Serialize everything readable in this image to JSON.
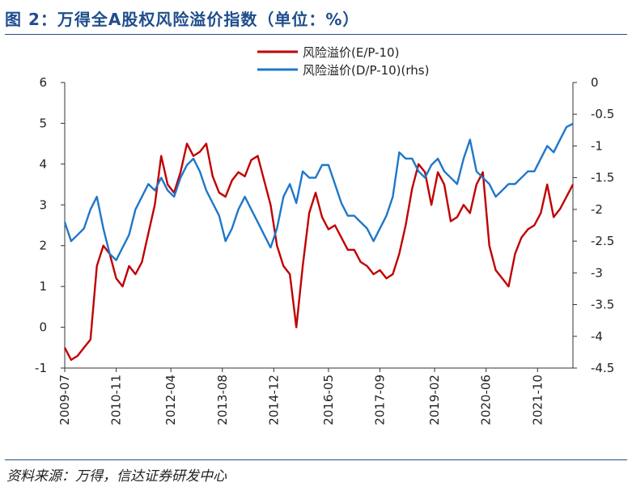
{
  "figure": {
    "title": "图 2：万得全A股权风险溢价指数（单位：%）",
    "source": "资料来源：万得，信达证券研发中心"
  },
  "chart_data": {
    "type": "line",
    "x_axis": {
      "type": "date",
      "range": [
        "2009-07",
        "2022-09"
      ],
      "tick_labels": [
        "2009-07",
        "2010-11",
        "2012-04",
        "2013-08",
        "2014-12",
        "2016-05",
        "2017-09",
        "2019-02",
        "2020-06",
        "2021-10"
      ]
    },
    "y_left": {
      "range": [
        -1,
        6
      ],
      "ticks": [
        -1,
        0,
        1,
        2,
        3,
        4,
        5,
        6
      ]
    },
    "y_right": {
      "range": [
        -4.5,
        0
      ],
      "ticks": [
        -4.5,
        -4,
        -3.5,
        -3,
        -2.5,
        -2,
        -1.5,
        -1,
        -0.5,
        0
      ]
    },
    "grid": false,
    "legend_position": "top-right",
    "series": [
      {
        "name": "风险溢价(E/P-10)",
        "axis": "left",
        "color": "#c00000",
        "x": [
          "2009-07",
          "2009-09",
          "2009-11",
          "2010-01",
          "2010-03",
          "2010-05",
          "2010-07",
          "2010-09",
          "2010-11",
          "2011-01",
          "2011-03",
          "2011-05",
          "2011-07",
          "2011-09",
          "2011-11",
          "2012-01",
          "2012-03",
          "2012-05",
          "2012-07",
          "2012-09",
          "2012-11",
          "2013-01",
          "2013-03",
          "2013-05",
          "2013-07",
          "2013-09",
          "2013-11",
          "2014-01",
          "2014-03",
          "2014-05",
          "2014-07",
          "2014-09",
          "2014-11",
          "2015-01",
          "2015-03",
          "2015-05",
          "2015-07",
          "2015-09",
          "2015-11",
          "2016-01",
          "2016-03",
          "2016-05",
          "2016-07",
          "2016-09",
          "2016-11",
          "2017-01",
          "2017-03",
          "2017-05",
          "2017-07",
          "2017-09",
          "2017-11",
          "2018-01",
          "2018-03",
          "2018-05",
          "2018-07",
          "2018-09",
          "2018-11",
          "2019-01",
          "2019-03",
          "2019-05",
          "2019-07",
          "2019-09",
          "2019-11",
          "2020-01",
          "2020-03",
          "2020-05",
          "2020-07",
          "2020-09",
          "2020-11",
          "2021-01",
          "2021-03",
          "2021-05",
          "2021-07",
          "2021-09",
          "2021-11",
          "2022-01",
          "2022-03",
          "2022-05",
          "2022-07",
          "2022-09"
        ],
        "values": [
          -0.5,
          -0.8,
          -0.7,
          -0.5,
          -0.3,
          1.5,
          2.0,
          1.8,
          1.2,
          1.0,
          1.5,
          1.3,
          1.6,
          2.3,
          3.0,
          4.2,
          3.5,
          3.3,
          3.8,
          4.5,
          4.2,
          4.3,
          4.5,
          3.7,
          3.3,
          3.2,
          3.6,
          3.8,
          3.7,
          4.1,
          4.2,
          3.6,
          3.0,
          2.0,
          1.5,
          1.3,
          0.0,
          1.5,
          2.8,
          3.3,
          2.7,
          2.4,
          2.5,
          2.2,
          1.9,
          1.9,
          1.6,
          1.5,
          1.3,
          1.4,
          1.2,
          1.3,
          1.8,
          2.5,
          3.4,
          4.0,
          3.8,
          3.0,
          3.8,
          3.5,
          2.6,
          2.7,
          3.0,
          2.8,
          3.5,
          3.8,
          2.0,
          1.4,
          1.2,
          1.0,
          1.8,
          2.2,
          2.4,
          2.5,
          2.8,
          3.5,
          2.7,
          2.9,
          3.2,
          3.5
        ]
      },
      {
        "name": "风险溢价(D/P-10)(rhs)",
        "axis": "right",
        "color": "#1f77c9",
        "x": [
          "2009-07",
          "2009-09",
          "2009-11",
          "2010-01",
          "2010-03",
          "2010-05",
          "2010-07",
          "2010-09",
          "2010-11",
          "2011-01",
          "2011-03",
          "2011-05",
          "2011-07",
          "2011-09",
          "2011-11",
          "2012-01",
          "2012-03",
          "2012-05",
          "2012-07",
          "2012-09",
          "2012-11",
          "2013-01",
          "2013-03",
          "2013-05",
          "2013-07",
          "2013-09",
          "2013-11",
          "2014-01",
          "2014-03",
          "2014-05",
          "2014-07",
          "2014-09",
          "2014-11",
          "2015-01",
          "2015-03",
          "2015-05",
          "2015-07",
          "2015-09",
          "2015-11",
          "2016-01",
          "2016-03",
          "2016-05",
          "2016-07",
          "2016-09",
          "2016-11",
          "2017-01",
          "2017-03",
          "2017-05",
          "2017-07",
          "2017-09",
          "2017-11",
          "2018-01",
          "2018-03",
          "2018-05",
          "2018-07",
          "2018-09",
          "2018-11",
          "2019-01",
          "2019-03",
          "2019-05",
          "2019-07",
          "2019-09",
          "2019-11",
          "2020-01",
          "2020-03",
          "2020-05",
          "2020-07",
          "2020-09",
          "2020-11",
          "2021-01",
          "2021-03",
          "2021-05",
          "2021-07",
          "2021-09",
          "2021-11",
          "2022-01",
          "2022-03",
          "2022-05",
          "2022-07",
          "2022-09"
        ],
        "values": [
          -2.2,
          -2.5,
          -2.4,
          -2.3,
          -2.0,
          -1.8,
          -2.3,
          -2.7,
          -2.8,
          -2.6,
          -2.4,
          -2.0,
          -1.8,
          -1.6,
          -1.7,
          -1.5,
          -1.7,
          -1.8,
          -1.5,
          -1.3,
          -1.2,
          -1.4,
          -1.7,
          -1.9,
          -2.1,
          -2.5,
          -2.3,
          -2.0,
          -1.8,
          -2.0,
          -2.2,
          -2.4,
          -2.6,
          -2.3,
          -1.8,
          -1.6,
          -1.9,
          -1.4,
          -1.5,
          -1.5,
          -1.3,
          -1.3,
          -1.6,
          -1.9,
          -2.1,
          -2.1,
          -2.2,
          -2.3,
          -2.5,
          -2.3,
          -2.1,
          -1.8,
          -1.1,
          -1.2,
          -1.2,
          -1.4,
          -1.5,
          -1.3,
          -1.2,
          -1.4,
          -1.5,
          -1.6,
          -1.2,
          -0.9,
          -1.4,
          -1.5,
          -1.6,
          -1.8,
          -1.7,
          -1.6,
          -1.6,
          -1.5,
          -1.4,
          -1.4,
          -1.2,
          -1.0,
          -1.1,
          -0.9,
          -0.7,
          -0.65
        ]
      }
    ]
  }
}
